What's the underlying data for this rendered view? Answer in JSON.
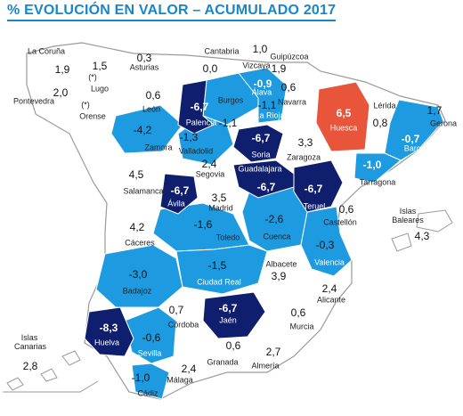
{
  "title": "% EVOLUCIÓN EN VALOR – ACUMULADO 2017",
  "colors": {
    "dark_blue": "#0f1f6e",
    "mid_blue": "#1e9be0",
    "white": "#ffffff",
    "highlight": "#e8553a",
    "border": "#bbbbbb",
    "title": "#1a86c8"
  },
  "provinces": [
    {
      "name": "La Coruña",
      "value": "1,9"
    },
    {
      "name": "Lugo",
      "value": "1,5",
      "note": "(*)"
    },
    {
      "name": "Pontevedra",
      "value": "2,0"
    },
    {
      "name": "Orense",
      "value": "",
      "note": "(*)"
    },
    {
      "name": "Asturias",
      "value": "0,3"
    },
    {
      "name": "Cantabria",
      "value": "0,0"
    },
    {
      "name": "Vizcaya",
      "value": "1,0"
    },
    {
      "name": "Guipúzcoa",
      "value": "1,9"
    },
    {
      "name": "Álava",
      "value": "-0,9"
    },
    {
      "name": "Navarra",
      "value": "0,6"
    },
    {
      "name": "Huesca",
      "value": "6,5"
    },
    {
      "name": "Lérida",
      "value": "0,8"
    },
    {
      "name": "Gerona",
      "value": "1,7"
    },
    {
      "name": "Barcelona",
      "value": "-0,7"
    },
    {
      "name": "Tarragona",
      "value": "-1,0"
    },
    {
      "name": "León",
      "value": "0,6"
    },
    {
      "name": "Palencia",
      "value": "-6,7"
    },
    {
      "name": "Burgos",
      "value": "-1,1"
    },
    {
      "name": "La Rioja",
      "value": "-1,1"
    },
    {
      "name": "Zamora",
      "value": "-4,2"
    },
    {
      "name": "Valladolid",
      "value": "-1,3"
    },
    {
      "name": "Soria",
      "value": "-6,7"
    },
    {
      "name": "Zaragoza",
      "value": "3,3"
    },
    {
      "name": "Salamanca",
      "value": "4,5"
    },
    {
      "name": "Segovia",
      "value": "2,4"
    },
    {
      "name": "Guadalajara",
      "value": "-6,7"
    },
    {
      "name": "Teruel",
      "value": "-6,7"
    },
    {
      "name": "Ávila",
      "value": "-6,7"
    },
    {
      "name": "Madrid",
      "value": "3,5"
    },
    {
      "name": "Castellón",
      "value": "0,6"
    },
    {
      "name": "Cáceres",
      "value": "4,2"
    },
    {
      "name": "Toledo",
      "value": "-1,6"
    },
    {
      "name": "Cuenca",
      "value": "-2,6"
    },
    {
      "name": "Valencia",
      "value": "-0,3"
    },
    {
      "name": "Badajoz",
      "value": "-3,0"
    },
    {
      "name": "Ciudad Real",
      "value": "-1,5"
    },
    {
      "name": "Albacete",
      "value": "3,9"
    },
    {
      "name": "Alicante",
      "value": "2,4"
    },
    {
      "name": "Córdoba",
      "value": "0,7"
    },
    {
      "name": "Jaén",
      "value": "-6,7"
    },
    {
      "name": "Murcia",
      "value": "0,6"
    },
    {
      "name": "Huelva",
      "value": "-8,3"
    },
    {
      "name": "Sevilla",
      "value": "-0,6"
    },
    {
      "name": "Granada",
      "value": "0,6"
    },
    {
      "name": "Almería",
      "value": "2,7"
    },
    {
      "name": "Málaga",
      "value": "2,4"
    },
    {
      "name": "Cádiz",
      "value": "-1,0"
    }
  ],
  "islands": [
    {
      "name": "Islas Baleares",
      "value": "4,3"
    },
    {
      "name": "Islas Canarias",
      "value": "2,8"
    }
  ]
}
